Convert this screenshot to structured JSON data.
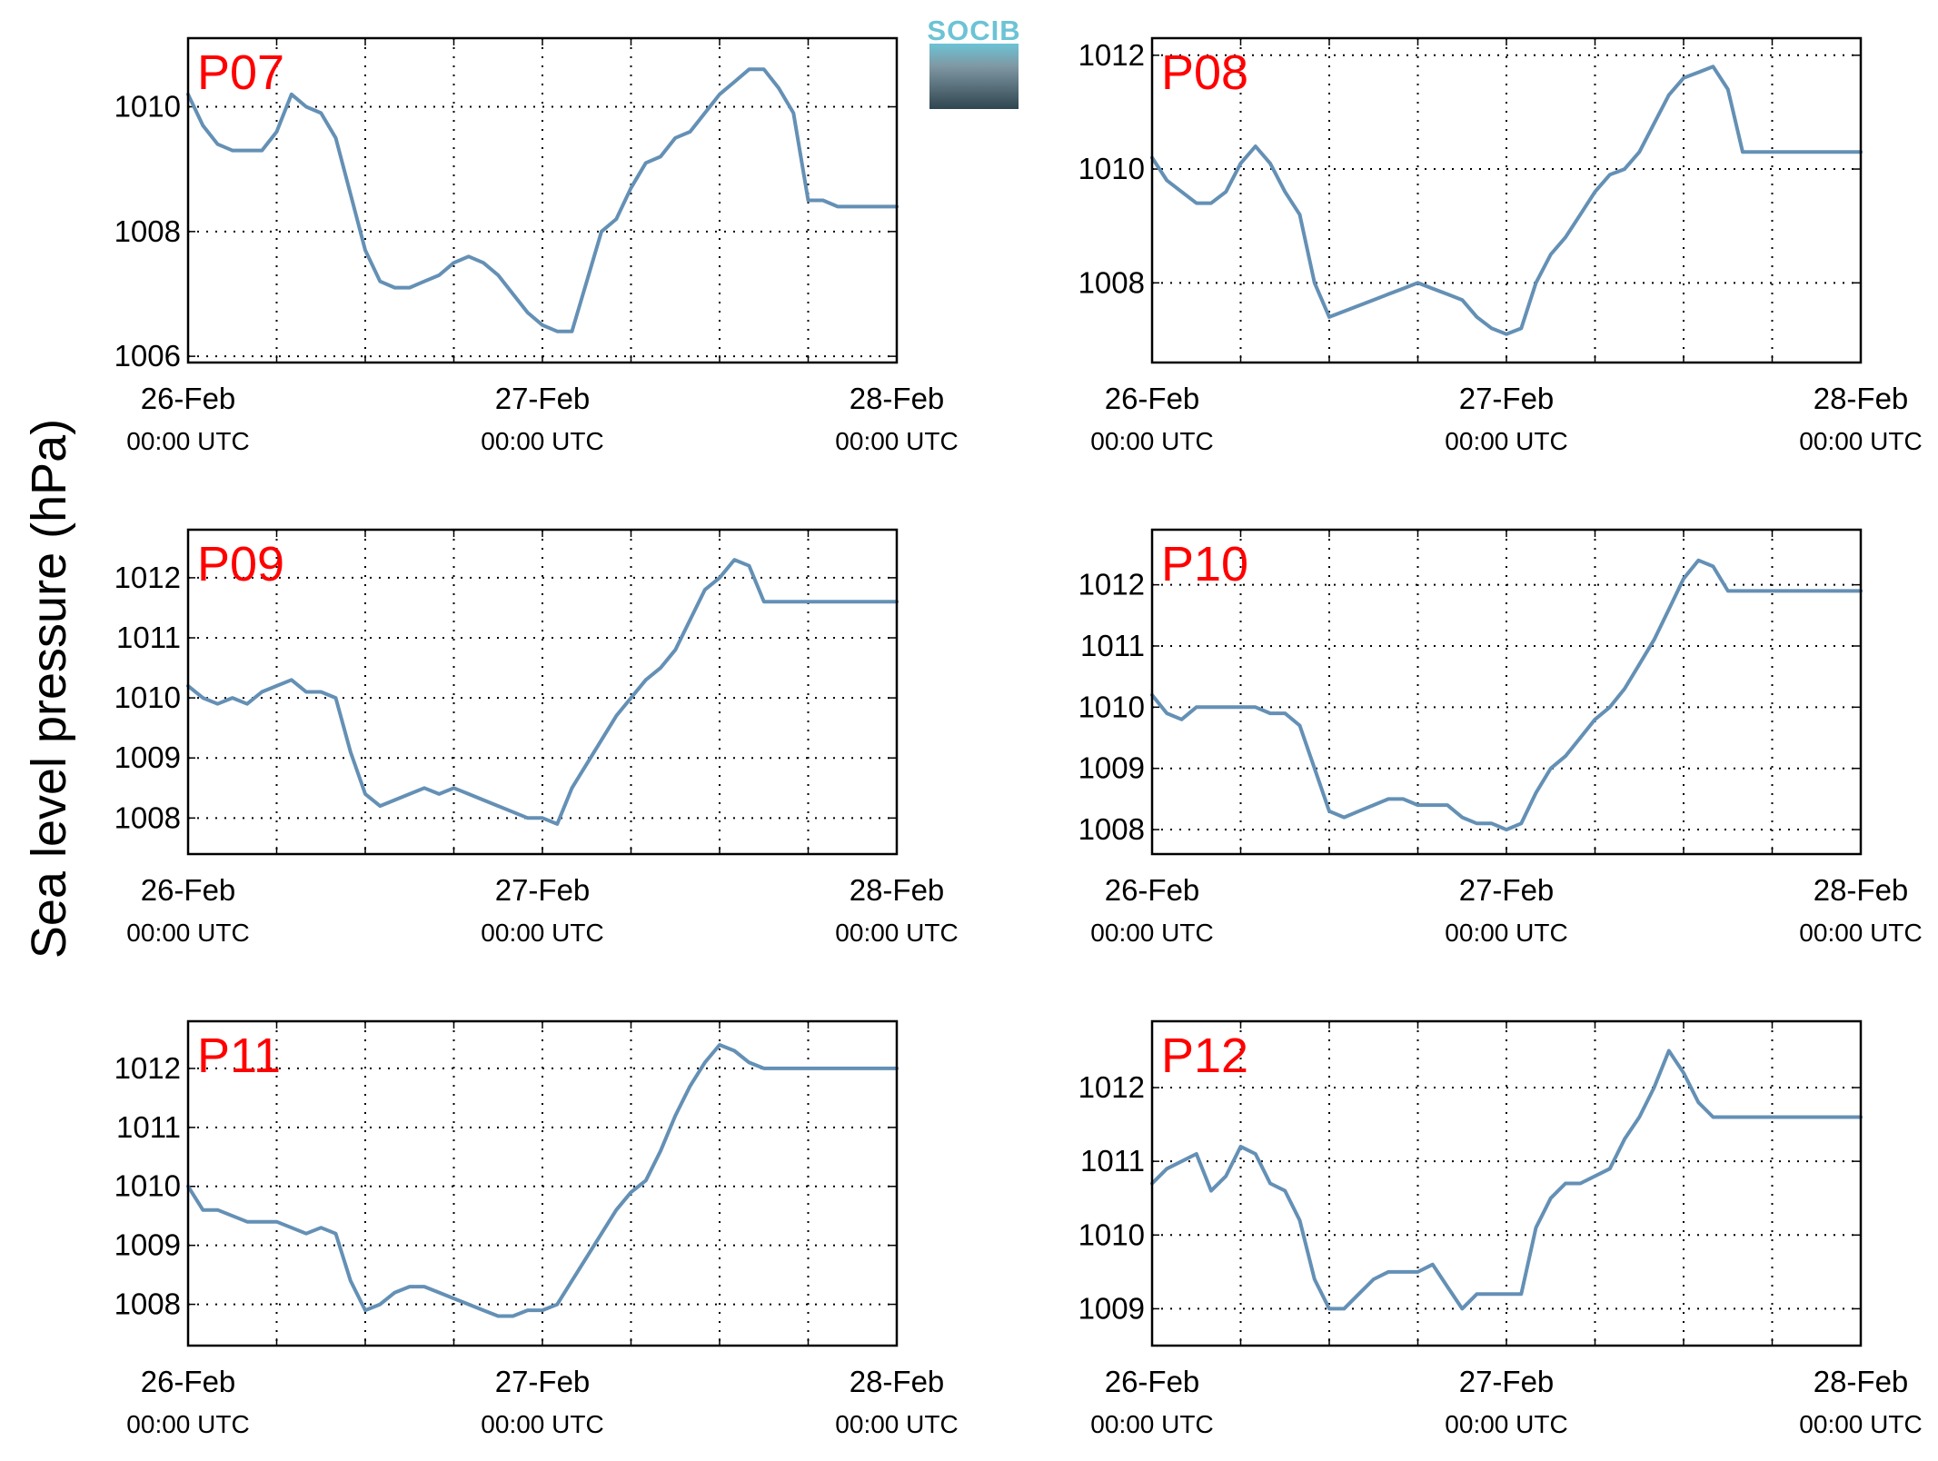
{
  "figure": {
    "ylabel": "Sea level pressure (hPa)",
    "logo_text": "SOCIB"
  },
  "chart_data": [
    {
      "type": "line",
      "panel": "P07",
      "x_tick_labels": [
        [
          "26-Feb",
          "00:00 UTC"
        ],
        [
          "27-Feb",
          "00:00 UTC"
        ],
        [
          "28-Feb",
          "00:00 UTC"
        ]
      ],
      "x_range_hours": [
        0,
        48
      ],
      "ylim": [
        1005.9,
        1011.1
      ],
      "yticks": [
        1006,
        1008,
        1010
      ],
      "grid": true,
      "line_color": "#6490b5",
      "label_color": "#ff0000",
      "x": [
        0,
        1,
        2,
        3,
        4,
        5,
        6,
        7,
        8,
        9,
        10,
        11,
        12,
        13,
        14,
        15,
        16,
        17,
        18,
        19,
        20,
        21,
        22,
        23,
        24,
        25,
        26,
        27,
        28,
        29,
        30,
        31,
        32,
        33,
        34,
        35,
        36,
        37,
        38,
        39,
        40,
        41,
        42,
        43,
        44,
        45,
        46,
        47,
        48
      ],
      "y": [
        1010.2,
        1009.7,
        1009.4,
        1009.3,
        1009.3,
        1009.3,
        1009.6,
        1010.2,
        1010.0,
        1009.9,
        1009.5,
        1008.6,
        1007.7,
        1007.2,
        1007.1,
        1007.1,
        1007.2,
        1007.3,
        1007.5,
        1007.6,
        1007.5,
        1007.3,
        1007.0,
        1006.7,
        1006.5,
        1006.4,
        1006.4,
        1007.2,
        1008.0,
        1008.2,
        1008.7,
        1009.1,
        1009.2,
        1009.5,
        1009.6,
        1009.9,
        1010.2,
        1010.4,
        1010.6,
        1010.6,
        1010.3,
        1009.9,
        1008.5,
        1008.5,
        1008.4,
        1008.4,
        1008.4,
        1008.4,
        1008.4
      ]
    },
    {
      "type": "line",
      "panel": "P08",
      "x_tick_labels": [
        [
          "26-Feb",
          "00:00 UTC"
        ],
        [
          "27-Feb",
          "00:00 UTC"
        ],
        [
          "28-Feb",
          "00:00 UTC"
        ]
      ],
      "x_range_hours": [
        0,
        48
      ],
      "ylim": [
        1006.6,
        1012.3
      ],
      "yticks": [
        1008,
        1010,
        1012
      ],
      "grid": true,
      "line_color": "#6490b5",
      "label_color": "#ff0000",
      "x": [
        0,
        1,
        2,
        3,
        4,
        5,
        6,
        7,
        8,
        9,
        10,
        11,
        12,
        13,
        14,
        15,
        16,
        17,
        18,
        19,
        20,
        21,
        22,
        23,
        24,
        25,
        26,
        27,
        28,
        29,
        30,
        31,
        32,
        33,
        34,
        35,
        36,
        37,
        38,
        39,
        40,
        41,
        42,
        43,
        44,
        45,
        46,
        47,
        48
      ],
      "y": [
        1010.2,
        1009.8,
        1009.6,
        1009.4,
        1009.4,
        1009.6,
        1010.1,
        1010.4,
        1010.1,
        1009.6,
        1009.2,
        1008.0,
        1007.4,
        1007.5,
        1007.6,
        1007.7,
        1007.8,
        1007.9,
        1008.0,
        1007.9,
        1007.8,
        1007.7,
        1007.4,
        1007.2,
        1007.1,
        1007.2,
        1008.0,
        1008.5,
        1008.8,
        1009.2,
        1009.6,
        1009.9,
        1010.0,
        1010.3,
        1010.8,
        1011.3,
        1011.6,
        1011.7,
        1011.8,
        1011.4,
        1010.3,
        1010.3,
        1010.3,
        1010.3,
        1010.3,
        1010.3,
        1010.3,
        1010.3,
        1010.3
      ]
    },
    {
      "type": "line",
      "panel": "P09",
      "x_tick_labels": [
        [
          "26-Feb",
          "00:00 UTC"
        ],
        [
          "27-Feb",
          "00:00 UTC"
        ],
        [
          "28-Feb",
          "00:00 UTC"
        ]
      ],
      "x_range_hours": [
        0,
        48
      ],
      "ylim": [
        1007.4,
        1012.8
      ],
      "yticks": [
        1008,
        1009,
        1010,
        1011,
        1012
      ],
      "grid": true,
      "line_color": "#6490b5",
      "label_color": "#ff0000",
      "x": [
        0,
        1,
        2,
        3,
        4,
        5,
        6,
        7,
        8,
        9,
        10,
        11,
        12,
        13,
        14,
        15,
        16,
        17,
        18,
        19,
        20,
        21,
        22,
        23,
        24,
        25,
        26,
        27,
        28,
        29,
        30,
        31,
        32,
        33,
        34,
        35,
        36,
        37,
        38,
        39,
        40,
        41,
        42,
        43,
        44,
        45,
        46,
        47,
        48
      ],
      "y": [
        1010.2,
        1010.0,
        1009.9,
        1010.0,
        1009.9,
        1010.1,
        1010.2,
        1010.3,
        1010.1,
        1010.1,
        1010.0,
        1009.1,
        1008.4,
        1008.2,
        1008.3,
        1008.4,
        1008.5,
        1008.4,
        1008.5,
        1008.4,
        1008.3,
        1008.2,
        1008.1,
        1008.0,
        1008.0,
        1007.9,
        1008.5,
        1008.9,
        1009.3,
        1009.7,
        1010.0,
        1010.3,
        1010.5,
        1010.8,
        1011.3,
        1011.8,
        1012.0,
        1012.3,
        1012.2,
        1011.6,
        1011.6,
        1011.6,
        1011.6,
        1011.6,
        1011.6,
        1011.6,
        1011.6,
        1011.6,
        1011.6
      ]
    },
    {
      "type": "line",
      "panel": "P10",
      "x_tick_labels": [
        [
          "26-Feb",
          "00:00 UTC"
        ],
        [
          "27-Feb",
          "00:00 UTC"
        ],
        [
          "28-Feb",
          "00:00 UTC"
        ]
      ],
      "x_range_hours": [
        0,
        48
      ],
      "ylim": [
        1007.6,
        1012.9
      ],
      "yticks": [
        1008,
        1009,
        1010,
        1011,
        1012
      ],
      "grid": true,
      "line_color": "#6490b5",
      "label_color": "#ff0000",
      "x": [
        0,
        1,
        2,
        3,
        4,
        5,
        6,
        7,
        8,
        9,
        10,
        11,
        12,
        13,
        14,
        15,
        16,
        17,
        18,
        19,
        20,
        21,
        22,
        23,
        24,
        25,
        26,
        27,
        28,
        29,
        30,
        31,
        32,
        33,
        34,
        35,
        36,
        37,
        38,
        39,
        40,
        41,
        42,
        43,
        44,
        45,
        46,
        47,
        48
      ],
      "y": [
        1010.2,
        1009.9,
        1009.8,
        1010.0,
        1010.0,
        1010.0,
        1010.0,
        1010.0,
        1009.9,
        1009.9,
        1009.7,
        1009.0,
        1008.3,
        1008.2,
        1008.3,
        1008.4,
        1008.5,
        1008.5,
        1008.4,
        1008.4,
        1008.4,
        1008.2,
        1008.1,
        1008.1,
        1008.0,
        1008.1,
        1008.6,
        1009.0,
        1009.2,
        1009.5,
        1009.8,
        1010.0,
        1010.3,
        1010.7,
        1011.1,
        1011.6,
        1012.1,
        1012.4,
        1012.3,
        1011.9,
        1011.9,
        1011.9,
        1011.9,
        1011.9,
        1011.9,
        1011.9,
        1011.9,
        1011.9,
        1011.9
      ]
    },
    {
      "type": "line",
      "panel": "P11",
      "x_tick_labels": [
        [
          "26-Feb",
          "00:00 UTC"
        ],
        [
          "27-Feb",
          "00:00 UTC"
        ],
        [
          "28-Feb",
          "00:00 UTC"
        ]
      ],
      "x_range_hours": [
        0,
        48
      ],
      "ylim": [
        1007.3,
        1012.8
      ],
      "yticks": [
        1008,
        1009,
        1010,
        1011,
        1012
      ],
      "grid": true,
      "line_color": "#6490b5",
      "label_color": "#ff0000",
      "x": [
        0,
        1,
        2,
        3,
        4,
        5,
        6,
        7,
        8,
        9,
        10,
        11,
        12,
        13,
        14,
        15,
        16,
        17,
        18,
        19,
        20,
        21,
        22,
        23,
        24,
        25,
        26,
        27,
        28,
        29,
        30,
        31,
        32,
        33,
        34,
        35,
        36,
        37,
        38,
        39,
        40,
        41,
        42,
        43,
        44,
        45,
        46,
        47,
        48
      ],
      "y": [
        1010.0,
        1009.6,
        1009.6,
        1009.5,
        1009.4,
        1009.4,
        1009.4,
        1009.3,
        1009.2,
        1009.3,
        1009.2,
        1008.4,
        1007.9,
        1008.0,
        1008.2,
        1008.3,
        1008.3,
        1008.2,
        1008.1,
        1008.0,
        1007.9,
        1007.8,
        1007.8,
        1007.9,
        1007.9,
        1008.0,
        1008.4,
        1008.8,
        1009.2,
        1009.6,
        1009.9,
        1010.1,
        1010.6,
        1011.2,
        1011.7,
        1012.1,
        1012.4,
        1012.3,
        1012.1,
        1012.0,
        1012.0,
        1012.0,
        1012.0,
        1012.0,
        1012.0,
        1012.0,
        1012.0,
        1012.0,
        1012.0
      ]
    },
    {
      "type": "line",
      "panel": "P12",
      "x_tick_labels": [
        [
          "26-Feb",
          "00:00 UTC"
        ],
        [
          "27-Feb",
          "00:00 UTC"
        ],
        [
          "28-Feb",
          "00:00 UTC"
        ]
      ],
      "x_range_hours": [
        0,
        48
      ],
      "ylim": [
        1008.5,
        1012.9
      ],
      "yticks": [
        1009,
        1010,
        1011,
        1012
      ],
      "grid": true,
      "line_color": "#6490b5",
      "label_color": "#ff0000",
      "x": [
        0,
        1,
        2,
        3,
        4,
        5,
        6,
        7,
        8,
        9,
        10,
        11,
        12,
        13,
        14,
        15,
        16,
        17,
        18,
        19,
        20,
        21,
        22,
        23,
        24,
        25,
        26,
        27,
        28,
        29,
        30,
        31,
        32,
        33,
        34,
        35,
        36,
        37,
        38,
        39,
        40,
        41,
        42,
        43,
        44,
        45,
        46,
        47,
        48
      ],
      "y": [
        1010.7,
        1010.9,
        1011.0,
        1011.1,
        1010.6,
        1010.8,
        1011.2,
        1011.1,
        1010.7,
        1010.6,
        1010.2,
        1009.4,
        1009.0,
        1009.0,
        1009.2,
        1009.4,
        1009.5,
        1009.5,
        1009.5,
        1009.6,
        1009.3,
        1009.0,
        1009.2,
        1009.2,
        1009.2,
        1009.2,
        1010.1,
        1010.5,
        1010.7,
        1010.7,
        1010.8,
        1010.9,
        1011.3,
        1011.6,
        1012.0,
        1012.5,
        1012.2,
        1011.8,
        1011.6,
        1011.6,
        1011.6,
        1011.6,
        1011.6,
        1011.6,
        1011.6,
        1011.6,
        1011.6,
        1011.6,
        1011.6
      ]
    }
  ]
}
